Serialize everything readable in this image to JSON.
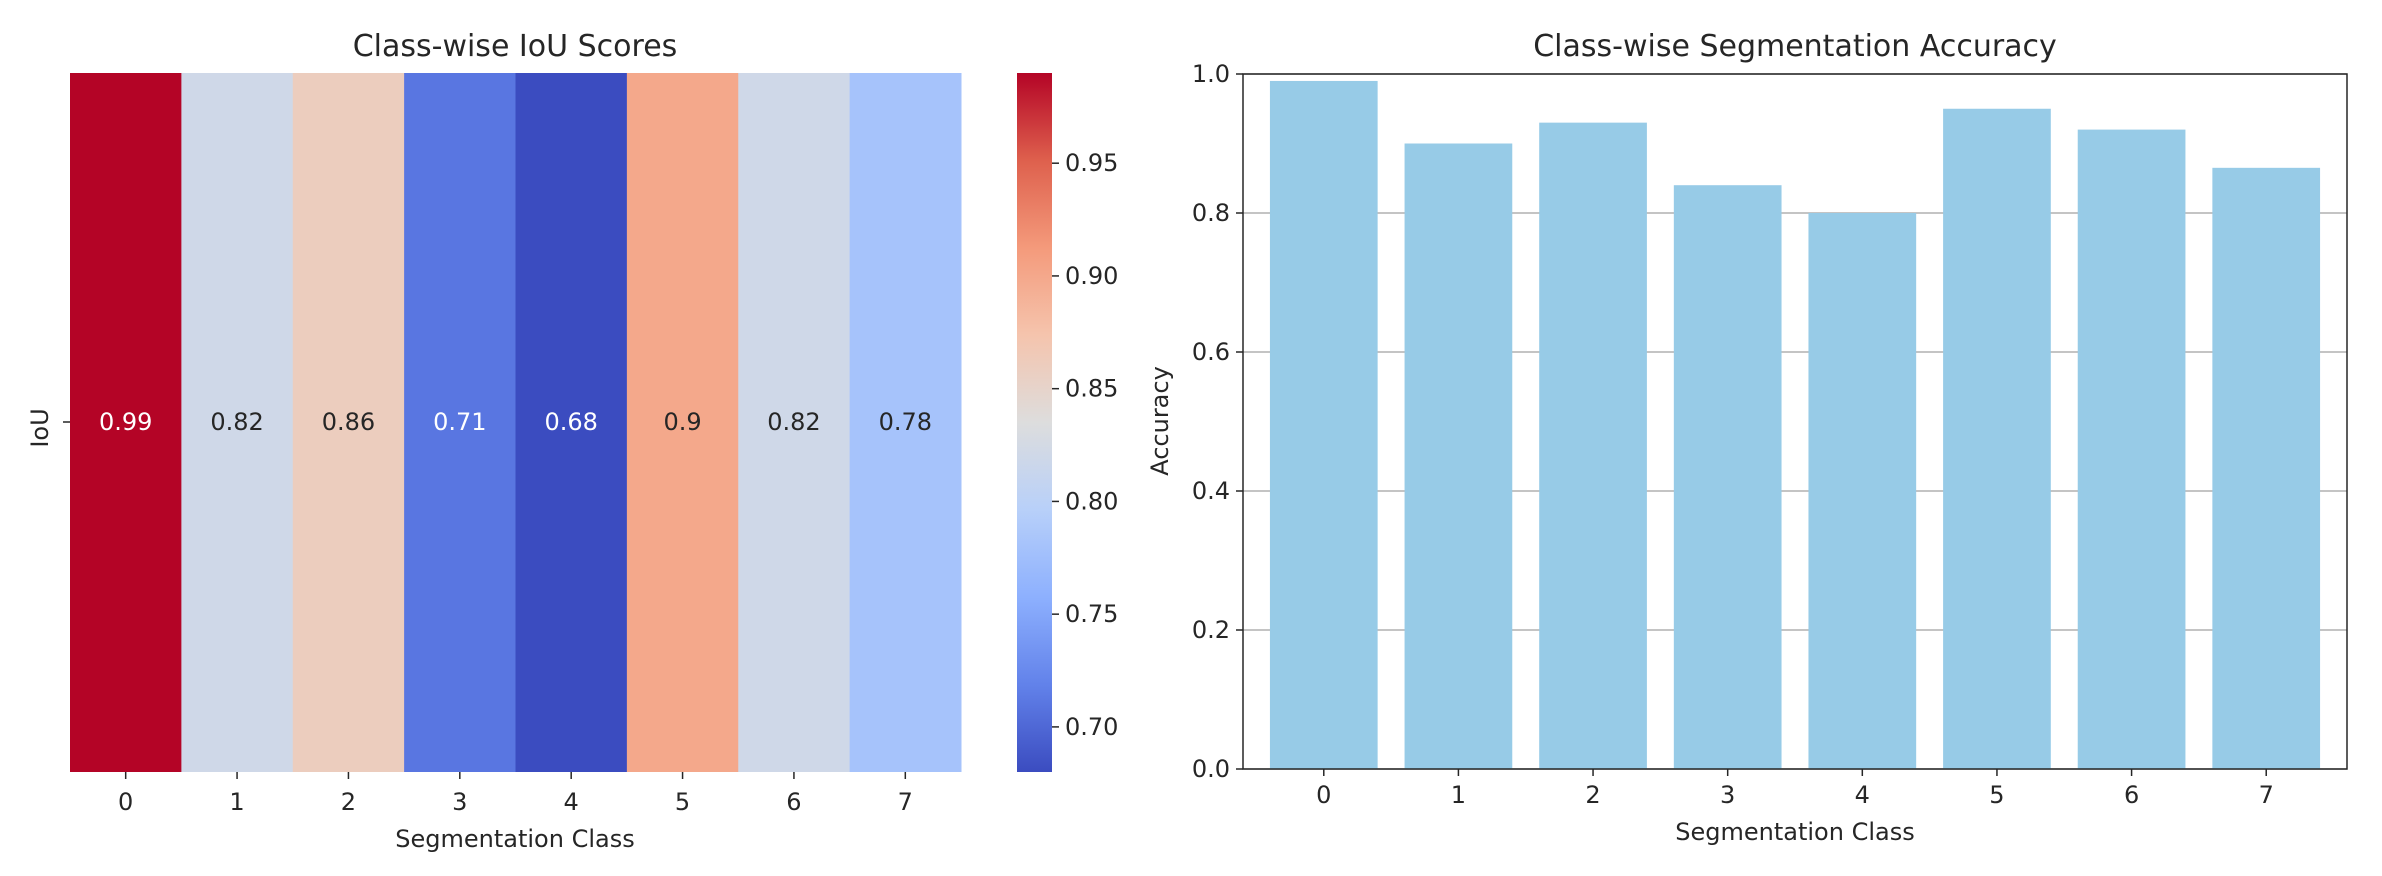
{
  "chart_data": [
    {
      "type": "heatmap",
      "title": "Class-wise IoU Scores",
      "xlabel": "Segmentation Class",
      "ylabel": "",
      "row_labels": [
        "IoU"
      ],
      "categories": [
        "0",
        "1",
        "2",
        "3",
        "4",
        "5",
        "6",
        "7"
      ],
      "values": [
        0.99,
        0.82,
        0.86,
        0.71,
        0.68,
        0.9,
        0.82,
        0.78
      ],
      "cell_labels": [
        "0.99",
        "0.82",
        "0.86",
        "0.71",
        "0.68",
        "0.9",
        "0.82",
        "0.78"
      ],
      "colormap": "coolwarm",
      "vmin": 0.68,
      "vmax": 0.99,
      "colorbar_ticks": [
        "0.70",
        "0.75",
        "0.80",
        "0.85",
        "0.90",
        "0.95"
      ],
      "grid": false
    },
    {
      "type": "bar",
      "title": "Class-wise Segmentation Accuracy",
      "xlabel": "Segmentation Class",
      "ylabel": "Accuracy",
      "categories": [
        "0",
        "1",
        "2",
        "3",
        "4",
        "5",
        "6",
        "7"
      ],
      "values": [
        0.99,
        0.9,
        0.93,
        0.84,
        0.8,
        0.95,
        0.92,
        0.865
      ],
      "ylim": [
        0,
        1.0
      ],
      "yticks": [
        "0.0",
        "0.2",
        "0.4",
        "0.6",
        "0.8",
        "1.0"
      ],
      "bar_color": "#97cbe7",
      "grid": "y"
    }
  ]
}
